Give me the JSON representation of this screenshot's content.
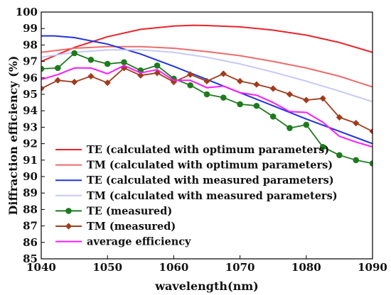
{
  "chart_data": {
    "type": "line",
    "title": "",
    "xlabel": "wavelength(nm)",
    "ylabel": "Diffraction efficiency (%)",
    "xlim": [
      1040,
      1090
    ],
    "ylim": [
      85,
      100
    ],
    "xticks": [
      1040,
      1050,
      1060,
      1070,
      1080,
      1090
    ],
    "yticks": [
      85,
      86,
      87,
      88,
      89,
      90,
      91,
      92,
      93,
      94,
      95,
      96,
      97,
      98,
      99,
      100
    ],
    "grid": false,
    "legend_position": "bottom-left",
    "series": [
      {
        "name": "TE (calculated with optimum parameters)",
        "color": "#e8242a",
        "marker": "none",
        "x": [
          1040,
          1045,
          1050,
          1055,
          1060,
          1063,
          1065,
          1070,
          1075,
          1080,
          1085,
          1090
        ],
        "y": [
          97.0,
          97.85,
          98.5,
          98.95,
          99.15,
          99.2,
          99.18,
          99.1,
          98.9,
          98.6,
          98.15,
          97.55
        ]
      },
      {
        "name": "TM (calculated with optimum parameters)",
        "color": "#ee6b6b",
        "marker": "none",
        "x": [
          1040,
          1045,
          1050,
          1055,
          1060,
          1065,
          1070,
          1075,
          1080,
          1085,
          1090
        ],
        "y": [
          97.55,
          97.8,
          97.9,
          97.9,
          97.8,
          97.6,
          97.35,
          97.0,
          96.6,
          96.1,
          95.45
        ]
      },
      {
        "name": "TE (calculated with measured parameters)",
        "color": "#2233dd",
        "marker": "none",
        "x": [
          1040,
          1042,
          1045,
          1050,
          1055,
          1060,
          1065,
          1070,
          1075,
          1080,
          1085,
          1090
        ],
        "y": [
          98.55,
          98.55,
          98.45,
          98.05,
          97.45,
          96.7,
          95.9,
          95.1,
          94.3,
          93.5,
          92.75,
          92.0
        ]
      },
      {
        "name": "TM (calculated with measured parameters)",
        "color": "#c6c9f3",
        "marker": "none",
        "x": [
          1040,
          1045,
          1050,
          1055,
          1060,
          1065,
          1070,
          1075,
          1080,
          1085,
          1090
        ],
        "y": [
          97.25,
          97.55,
          97.7,
          97.7,
          97.55,
          97.25,
          96.85,
          96.35,
          95.8,
          95.2,
          94.55
        ]
      },
      {
        "name": "TE (measured)",
        "color": "#1e7a1e",
        "marker": "circle",
        "x": [
          1040,
          1042.5,
          1045,
          1047.5,
          1050,
          1052.5,
          1055,
          1057.5,
          1060,
          1062.5,
          1065,
          1067.5,
          1070,
          1072.5,
          1075,
          1077.5,
          1080,
          1082.5,
          1085,
          1087.5,
          1090
        ],
        "y": [
          96.55,
          96.6,
          97.5,
          97.1,
          96.85,
          96.95,
          96.45,
          96.75,
          95.95,
          95.55,
          95.0,
          94.8,
          94.4,
          94.3,
          93.65,
          92.95,
          93.15,
          91.8,
          91.3,
          91.0,
          90.8
        ]
      },
      {
        "name": "TM (measured)",
        "color": "#a03c1e",
        "marker": "diamond",
        "x": [
          1040,
          1042.5,
          1045,
          1047.5,
          1050,
          1052.5,
          1055,
          1057.5,
          1060,
          1062.5,
          1065,
          1067.5,
          1070,
          1072.5,
          1075,
          1077.5,
          1080,
          1082.5,
          1085,
          1087.5,
          1090
        ],
        "y": [
          95.35,
          95.85,
          95.75,
          96.1,
          95.7,
          96.6,
          96.15,
          96.3,
          95.75,
          96.2,
          95.8,
          96.25,
          95.8,
          95.6,
          95.35,
          95.0,
          94.65,
          94.75,
          93.6,
          93.25,
          92.75
        ]
      },
      {
        "name": "average efficiency",
        "color": "#ff1aff",
        "marker": "none",
        "x": [
          1040,
          1042.5,
          1045,
          1047.5,
          1050,
          1052.5,
          1055,
          1057.5,
          1060,
          1062.5,
          1065,
          1067.5,
          1070,
          1072.5,
          1075,
          1077.5,
          1080,
          1082.5,
          1085,
          1087.5,
          1090
        ],
        "y": [
          95.9,
          96.2,
          96.6,
          96.6,
          96.25,
          96.75,
          96.3,
          96.5,
          95.85,
          95.85,
          95.4,
          95.5,
          95.1,
          94.95,
          94.5,
          93.95,
          93.9,
          93.3,
          92.45,
          92.1,
          91.8
        ]
      }
    ]
  }
}
